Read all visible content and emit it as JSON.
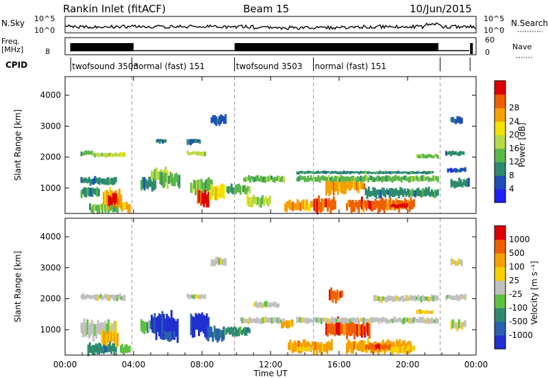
{
  "header": {
    "station": "Rankin Inlet (fitACF)",
    "beam": "Beam 15",
    "date": "10/Jun/2015"
  },
  "status_panels": {
    "nsky": {
      "label": "N.Sky",
      "left_ticks": [
        "10^5",
        "10^0"
      ],
      "right_label": "N.Search",
      "right_ticks": [
        "10^5",
        "10^0"
      ]
    },
    "freq": {
      "label_line1": "Freq.",
      "label_line2": "[MHz]",
      "left_ticks": [
        "8"
      ],
      "right_label": "Nave",
      "right_ticks": [
        "60",
        "0"
      ]
    },
    "cpid": {
      "label": "CPID",
      "modes": [
        {
          "name": "twofsound 3503",
          "start": 0.33,
          "end": 3.9
        },
        {
          "name": "normal (fast) 151",
          "start": 3.9,
          "end": 9.9
        },
        {
          "name": "twofsound 3503",
          "start": 9.9,
          "end": 14.5
        },
        {
          "name": "normal (fast) 151",
          "start": 14.5,
          "end": 21.9
        }
      ]
    }
  },
  "chart_data": [
    {
      "type": "heatmap",
      "quantity": "Power",
      "xlabel": "",
      "ylabel": "Slant Range [km]",
      "xlim": [
        0,
        24
      ],
      "ylim": [
        180,
        4600
      ],
      "y_ticks": [
        1000,
        2000,
        3000,
        4000
      ],
      "colorbar": {
        "label": "Power [dB]",
        "ticks": [
          "4",
          "8",
          "12",
          "16",
          "20",
          "24",
          "28"
        ],
        "colors": [
          "#2020ff",
          "#1c50b8",
          "#2e8a6e",
          "#5cb74a",
          "#b8d94a",
          "#f4e000",
          "#f5a000",
          "#f06000",
          "#e00000"
        ]
      },
      "regions": [
        {
          "t0": 0.9,
          "t1": 1.6,
          "r0": 2050,
          "r1": 2200,
          "c": 3
        },
        {
          "t0": 1.6,
          "t1": 3.5,
          "r0": 2000,
          "r1": 2150,
          "c": 4
        },
        {
          "t0": 0.9,
          "t1": 3.0,
          "r0": 1100,
          "r1": 1350,
          "c": 2
        },
        {
          "t0": 0.9,
          "t1": 2.0,
          "r0": 700,
          "r1": 1000,
          "c": 2
        },
        {
          "t0": 1.4,
          "t1": 3.1,
          "r0": 200,
          "r1": 500,
          "c": 3
        },
        {
          "t0": 2.2,
          "t1": 3.3,
          "r0": 300,
          "r1": 1000,
          "c": 6
        },
        {
          "t0": 2.5,
          "t1": 3.1,
          "r0": 450,
          "r1": 800,
          "c": 8
        },
        {
          "t0": 3.2,
          "t1": 3.8,
          "r0": 200,
          "r1": 550,
          "c": 6
        },
        {
          "t0": 4.4,
          "t1": 5.3,
          "r0": 900,
          "r1": 1350,
          "c": 2
        },
        {
          "t0": 5.0,
          "t1": 6.0,
          "r0": 1250,
          "r1": 1650,
          "c": 4
        },
        {
          "t0": 5.5,
          "t1": 6.7,
          "r0": 1050,
          "r1": 1500,
          "c": 3
        },
        {
          "t0": 5.3,
          "t1": 5.9,
          "r0": 2450,
          "r1": 2600,
          "c": 2
        },
        {
          "t0": 7.1,
          "t1": 7.9,
          "r0": 2400,
          "r1": 2600,
          "c": 2
        },
        {
          "t0": 7.1,
          "t1": 8.2,
          "r0": 2050,
          "r1": 2200,
          "c": 4
        },
        {
          "t0": 7.3,
          "t1": 8.6,
          "r0": 800,
          "r1": 1300,
          "c": 3
        },
        {
          "t0": 7.7,
          "t1": 8.4,
          "r0": 400,
          "r1": 900,
          "c": 8
        },
        {
          "t0": 8.4,
          "t1": 9.3,
          "r0": 600,
          "r1": 1100,
          "c": 5
        },
        {
          "t0": 8.5,
          "t1": 9.4,
          "r0": 3050,
          "r1": 3350,
          "c": 1
        },
        {
          "t0": 9.4,
          "t1": 10.8,
          "r0": 800,
          "r1": 1100,
          "c": 3
        },
        {
          "t0": 10.4,
          "t1": 12.8,
          "r0": 1200,
          "r1": 1400,
          "c": 3
        },
        {
          "t0": 10.6,
          "t1": 12.0,
          "r0": 400,
          "r1": 750,
          "c": 4
        },
        {
          "t0": 12.8,
          "t1": 14.5,
          "r0": 250,
          "r1": 600,
          "c": 6
        },
        {
          "t0": 14.5,
          "t1": 15.8,
          "r0": 200,
          "r1": 700,
          "c": 7
        },
        {
          "t0": 15.2,
          "t1": 16.4,
          "r0": 800,
          "r1": 1350,
          "c": 6
        },
        {
          "t0": 16.2,
          "t1": 17.5,
          "r0": 900,
          "r1": 1250,
          "c": 6
        },
        {
          "t0": 16.4,
          "t1": 18.5,
          "r0": 250,
          "r1": 650,
          "c": 7
        },
        {
          "t0": 18.5,
          "t1": 20.4,
          "r0": 250,
          "r1": 650,
          "c": 7
        },
        {
          "t0": 19.0,
          "t1": 20.0,
          "r0": 350,
          "r1": 500,
          "c": 8
        },
        {
          "t0": 13.5,
          "t1": 21.8,
          "r0": 1200,
          "r1": 1400,
          "c": 3
        },
        {
          "t0": 13.5,
          "t1": 21.5,
          "r0": 1450,
          "r1": 1550,
          "c": 2
        },
        {
          "t0": 17.5,
          "t1": 21.8,
          "r0": 700,
          "r1": 1000,
          "c": 2
        },
        {
          "t0": 20.5,
          "t1": 21.8,
          "r0": 1950,
          "r1": 2100,
          "c": 3
        },
        {
          "t0": 22.2,
          "t1": 23.3,
          "r0": 2050,
          "r1": 2200,
          "c": 2
        },
        {
          "t0": 22.3,
          "t1": 23.4,
          "r0": 1500,
          "r1": 1650,
          "c": 1
        },
        {
          "t0": 22.5,
          "t1": 23.6,
          "r0": 1000,
          "r1": 1300,
          "c": 2
        },
        {
          "t0": 22.5,
          "t1": 23.2,
          "r0": 3050,
          "r1": 3300,
          "c": 1
        }
      ]
    },
    {
      "type": "heatmap",
      "quantity": "Velocity",
      "xlabel": "Time UT",
      "ylabel": "Slant Range [km]",
      "xlim": [
        0,
        24
      ],
      "ylim": [
        180,
        4600
      ],
      "y_ticks": [
        1000,
        2000,
        3000,
        4000
      ],
      "x_ticks": [
        "00:00",
        "04:00",
        "08:00",
        "12:00",
        "16:00",
        "20:00",
        "00:00"
      ],
      "colorbar": {
        "label": "Velocity [m s⁻¹]",
        "ticks": [
          "1000",
          "500",
          "100",
          "25",
          "-25",
          "-100",
          "-500",
          "-1000"
        ],
        "colors": [
          "#2030d0",
          "#2860b0",
          "#2e8a6e",
          "#5ec040",
          "#c0c0c0",
          "#f6d000",
          "#f5a000",
          "#f06000",
          "#e00000"
        ]
      },
      "regions": [
        {
          "t0": 0.9,
          "t1": 3.5,
          "r0": 1950,
          "r1": 2150,
          "c": 4
        },
        {
          "t0": 0.9,
          "t1": 3.0,
          "r0": 700,
          "r1": 1300,
          "c": 4
        },
        {
          "t0": 1.3,
          "t1": 3.0,
          "r0": 200,
          "r1": 600,
          "c": 2
        },
        {
          "t0": 2.1,
          "t1": 3.1,
          "r0": 500,
          "r1": 1000,
          "c": 6
        },
        {
          "t0": 3.2,
          "t1": 3.8,
          "r0": 200,
          "r1": 500,
          "c": 3
        },
        {
          "t0": 4.4,
          "t1": 5.3,
          "r0": 900,
          "r1": 1300,
          "c": 3
        },
        {
          "t0": 5.0,
          "t1": 6.6,
          "r0": 700,
          "r1": 1500,
          "c": 0
        },
        {
          "t0": 5.6,
          "t1": 6.4,
          "r0": 650,
          "r1": 1000,
          "c": 1
        },
        {
          "t0": 7.1,
          "t1": 8.2,
          "r0": 2000,
          "r1": 2150,
          "c": 4
        },
        {
          "t0": 7.3,
          "t1": 8.4,
          "r0": 700,
          "r1": 1550,
          "c": 0
        },
        {
          "t0": 8.3,
          "t1": 9.3,
          "r0": 600,
          "r1": 1100,
          "c": 1
        },
        {
          "t0": 8.5,
          "t1": 9.4,
          "r0": 3050,
          "r1": 3350,
          "c": 4
        },
        {
          "t0": 9.3,
          "t1": 10.8,
          "r0": 800,
          "r1": 1100,
          "c": 2
        },
        {
          "t0": 10.2,
          "t1": 12.8,
          "r0": 1200,
          "r1": 1400,
          "c": 4
        },
        {
          "t0": 11.0,
          "t1": 12.5,
          "r0": 1700,
          "r1": 1900,
          "c": 4
        },
        {
          "t0": 12.6,
          "t1": 13.3,
          "r0": 1050,
          "r1": 1300,
          "c": 6
        },
        {
          "t0": 13.0,
          "t1": 15.6,
          "r0": 250,
          "r1": 650,
          "c": 6
        },
        {
          "t0": 13.5,
          "t1": 14.5,
          "r0": 300,
          "r1": 450,
          "c": 5
        },
        {
          "t0": 15.2,
          "t1": 16.4,
          "r0": 800,
          "r1": 1400,
          "c": 7
        },
        {
          "t0": 15.4,
          "t1": 16.2,
          "r0": 1900,
          "r1": 2300,
          "c": 7
        },
        {
          "t0": 16.4,
          "t1": 17.8,
          "r0": 700,
          "r1": 1300,
          "c": 7
        },
        {
          "t0": 16.4,
          "t1": 20.2,
          "r0": 250,
          "r1": 650,
          "c": 6
        },
        {
          "t0": 17.5,
          "t1": 19.0,
          "r0": 350,
          "r1": 550,
          "c": 7
        },
        {
          "t0": 19.0,
          "t1": 20.4,
          "r0": 250,
          "r1": 500,
          "c": 5
        },
        {
          "t0": 13.5,
          "t1": 21.8,
          "r0": 1200,
          "r1": 1400,
          "c": 4
        },
        {
          "t0": 18.0,
          "t1": 21.8,
          "r0": 1900,
          "r1": 2100,
          "c": 4
        },
        {
          "t0": 20.5,
          "t1": 21.5,
          "r0": 1500,
          "r1": 1650,
          "c": 5
        },
        {
          "t0": 22.2,
          "t1": 23.4,
          "r0": 1950,
          "r1": 2150,
          "c": 4
        },
        {
          "t0": 22.5,
          "t1": 23.4,
          "r0": 1000,
          "r1": 1300,
          "c": 4
        },
        {
          "t0": 22.5,
          "t1": 23.2,
          "r0": 3050,
          "r1": 3300,
          "c": 4
        }
      ]
    }
  ]
}
